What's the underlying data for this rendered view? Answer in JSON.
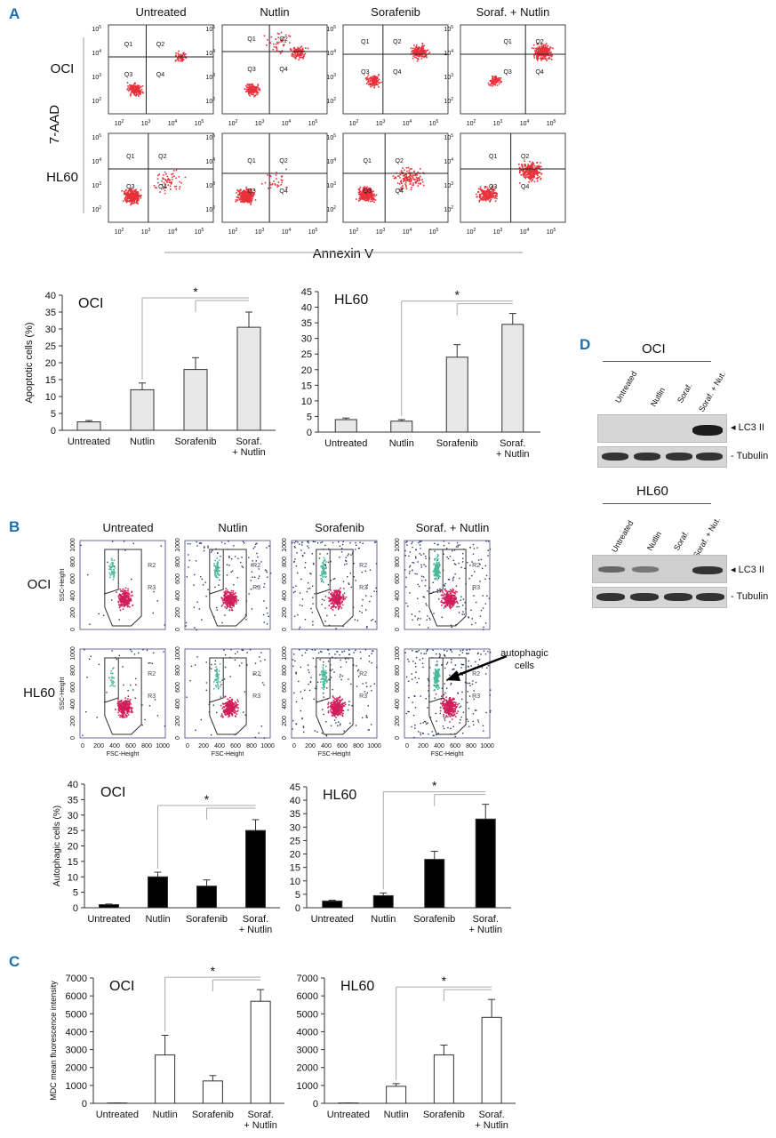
{
  "panels": {
    "A": "A",
    "B": "B",
    "C": "C",
    "D": "D"
  },
  "flow_a": {
    "column_labels": [
      "Untreated",
      "Nutlin",
      "Sorafenib",
      "Soraf. + Nutlin"
    ],
    "row_labels": [
      "OCI",
      "HL60"
    ],
    "y_axis": "7-AAD",
    "x_axis": "Annexin V",
    "quadrants": [
      "Q1",
      "Q2",
      "Q3",
      "Q4"
    ],
    "tick_exponents": [
      "2",
      "3",
      "4",
      "5"
    ],
    "tick_base": "10"
  },
  "flow_b": {
    "column_labels": [
      "Untreated",
      "Nutlin",
      "Sorafenib",
      "Soraf. + Nutlin"
    ],
    "row_labels": [
      "OCI",
      "HL60"
    ],
    "y_label": "SSC-Height",
    "x_label": "FSC-Height",
    "gate_r2": "R2",
    "gate_r3": "R3",
    "ticks": [
      "0",
      "200",
      "400",
      "600",
      "800",
      "1000"
    ],
    "annotation": "autophagic cells"
  },
  "western": {
    "oci_title": "OCI",
    "hl60_title": "HL60",
    "lanes": [
      "Untreated",
      "Nutlin",
      "Soraf.",
      "Soraf. + Nut."
    ],
    "lc3_label": "LC3 II",
    "tubulin_label": "Tubulin",
    "arrow": "◂",
    "dash": "-"
  },
  "significance": "*",
  "chart_data": [
    {
      "id": "a_oci",
      "type": "bar",
      "title": "OCI",
      "categories": [
        "Untreated",
        "Nutlin",
        "Sorafenib",
        "Soraf.\n+ Nutlin"
      ],
      "values": [
        2.5,
        12,
        18,
        30.5
      ],
      "errors": [
        0.4,
        2,
        3.5,
        4.5
      ],
      "ylabel": "Apoptotic cells (%)",
      "ylim": [
        0,
        40
      ],
      "yticks": [
        0,
        5,
        10,
        15,
        20,
        25,
        30,
        35,
        40
      ],
      "bar_color": "#e8e8e8",
      "sig_from": 1,
      "sig_to": 3
    },
    {
      "id": "a_hl60",
      "type": "bar",
      "title": "HL60",
      "categories": [
        "Untreated",
        "Nutlin",
        "Sorafenib",
        "Soraf.\n+ Nutlin"
      ],
      "values": [
        4,
        3.5,
        24,
        34.5
      ],
      "errors": [
        0.5,
        0.5,
        4,
        3.5
      ],
      "ylabel": "",
      "ylim": [
        0,
        45
      ],
      "yticks": [
        0,
        5,
        10,
        15,
        20,
        25,
        30,
        35,
        40,
        45
      ],
      "bar_color": "#e8e8e8",
      "sig_from": 1,
      "sig_to": 3
    },
    {
      "id": "b_oci",
      "type": "bar",
      "title": "OCI",
      "categories": [
        "Untreated",
        "Nutlin",
        "Sorafenib",
        "Soraf.\n+ Nutlin"
      ],
      "values": [
        1,
        10,
        7,
        25
      ],
      "errors": [
        0.2,
        1.5,
        2,
        3.5
      ],
      "ylabel": "Autophagic cells (%)",
      "ylim": [
        0,
        40
      ],
      "yticks": [
        0,
        5,
        10,
        15,
        20,
        25,
        30,
        35,
        40
      ],
      "bar_color": "#000000",
      "sig_from": 1,
      "sig_to": 3
    },
    {
      "id": "b_hl60",
      "type": "bar",
      "title": "HL60",
      "categories": [
        "Untreated",
        "Nutlin",
        "Sorafenib",
        "Soraf.\n+ Nutlin"
      ],
      "values": [
        2.5,
        4.5,
        18,
        33
      ],
      "errors": [
        0.3,
        1,
        3,
        5.5
      ],
      "ylabel": "",
      "ylim": [
        0,
        45
      ],
      "yticks": [
        0,
        5,
        10,
        15,
        20,
        25,
        30,
        35,
        40,
        45
      ],
      "bar_color": "#000000",
      "sig_from": 1,
      "sig_to": 3
    },
    {
      "id": "c_oci",
      "type": "bar",
      "title": "OCI",
      "categories": [
        "Untreated",
        "Nutlin",
        "Sorafenib",
        "Soraf.\n+ Nutlin"
      ],
      "values": [
        20,
        2700,
        1250,
        5700
      ],
      "errors": [
        5,
        1100,
        300,
        650
      ],
      "ylabel": "MDC mean fluorescence intensity",
      "ylim": [
        0,
        7000
      ],
      "yticks": [
        0,
        1000,
        2000,
        3000,
        4000,
        5000,
        6000,
        7000
      ],
      "bar_color": "#ffffff",
      "sig_from": 1,
      "sig_to": 3
    },
    {
      "id": "c_hl60",
      "type": "bar",
      "title": "HL60",
      "categories": [
        "Untreated",
        "Nutlin",
        "Sorafenib",
        "Soraf.\n+ Nutlin"
      ],
      "values": [
        20,
        950,
        2700,
        4800
      ],
      "errors": [
        5,
        150,
        550,
        1000
      ],
      "ylabel": "",
      "ylim": [
        0,
        7000
      ],
      "yticks": [
        0,
        1000,
        2000,
        3000,
        4000,
        5000,
        6000,
        7000
      ],
      "bar_color": "#ffffff",
      "sig_from": 1,
      "sig_to": 3
    }
  ]
}
